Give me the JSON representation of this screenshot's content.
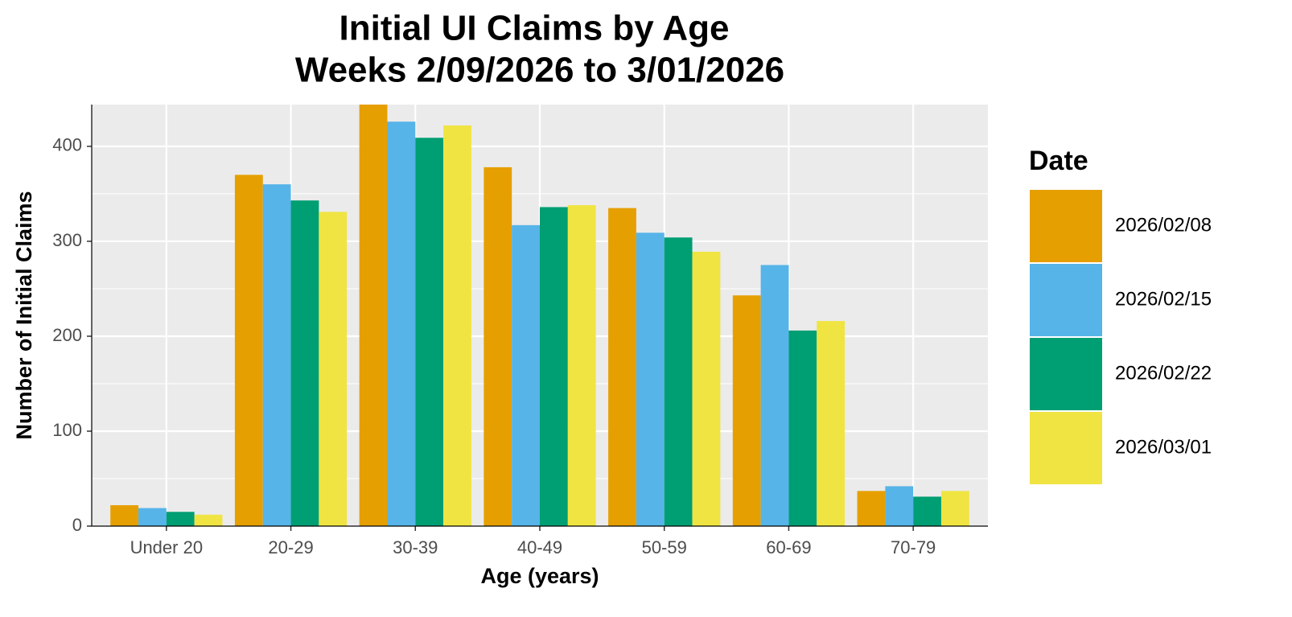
{
  "chart_data": {
    "type": "bar",
    "title": "Initial UI Claims by Age",
    "subtitle": "Weeks  2/09/2026 to 3/01/2026",
    "x_label": "Age (years)",
    "y_label": "Number of Initial Claims",
    "legend_title": "Date",
    "legend_position": "right",
    "categories": [
      "Under 20",
      "20-29",
      "30-39",
      "40-49",
      "50-59",
      "60-69",
      "70-79"
    ],
    "series": [
      {
        "name": "2026/02/08",
        "color": "#E69F00",
        "values": [
          22,
          370,
          444,
          378,
          335,
          243,
          37
        ]
      },
      {
        "name": "2026/02/15",
        "color": "#56B4E9",
        "values": [
          19,
          360,
          426,
          317,
          309,
          275,
          42
        ]
      },
      {
        "name": "2026/02/22",
        "color": "#009E73",
        "values": [
          15,
          343,
          409,
          336,
          304,
          206,
          31
        ]
      },
      {
        "name": "2026/03/01",
        "color": "#F0E442",
        "values": [
          12,
          331,
          422,
          338,
          289,
          216,
          37
        ]
      }
    ],
    "ylim": [
      0,
      444
    ],
    "yticks": [
      0,
      100,
      200,
      300,
      400
    ],
    "grid": true
  }
}
